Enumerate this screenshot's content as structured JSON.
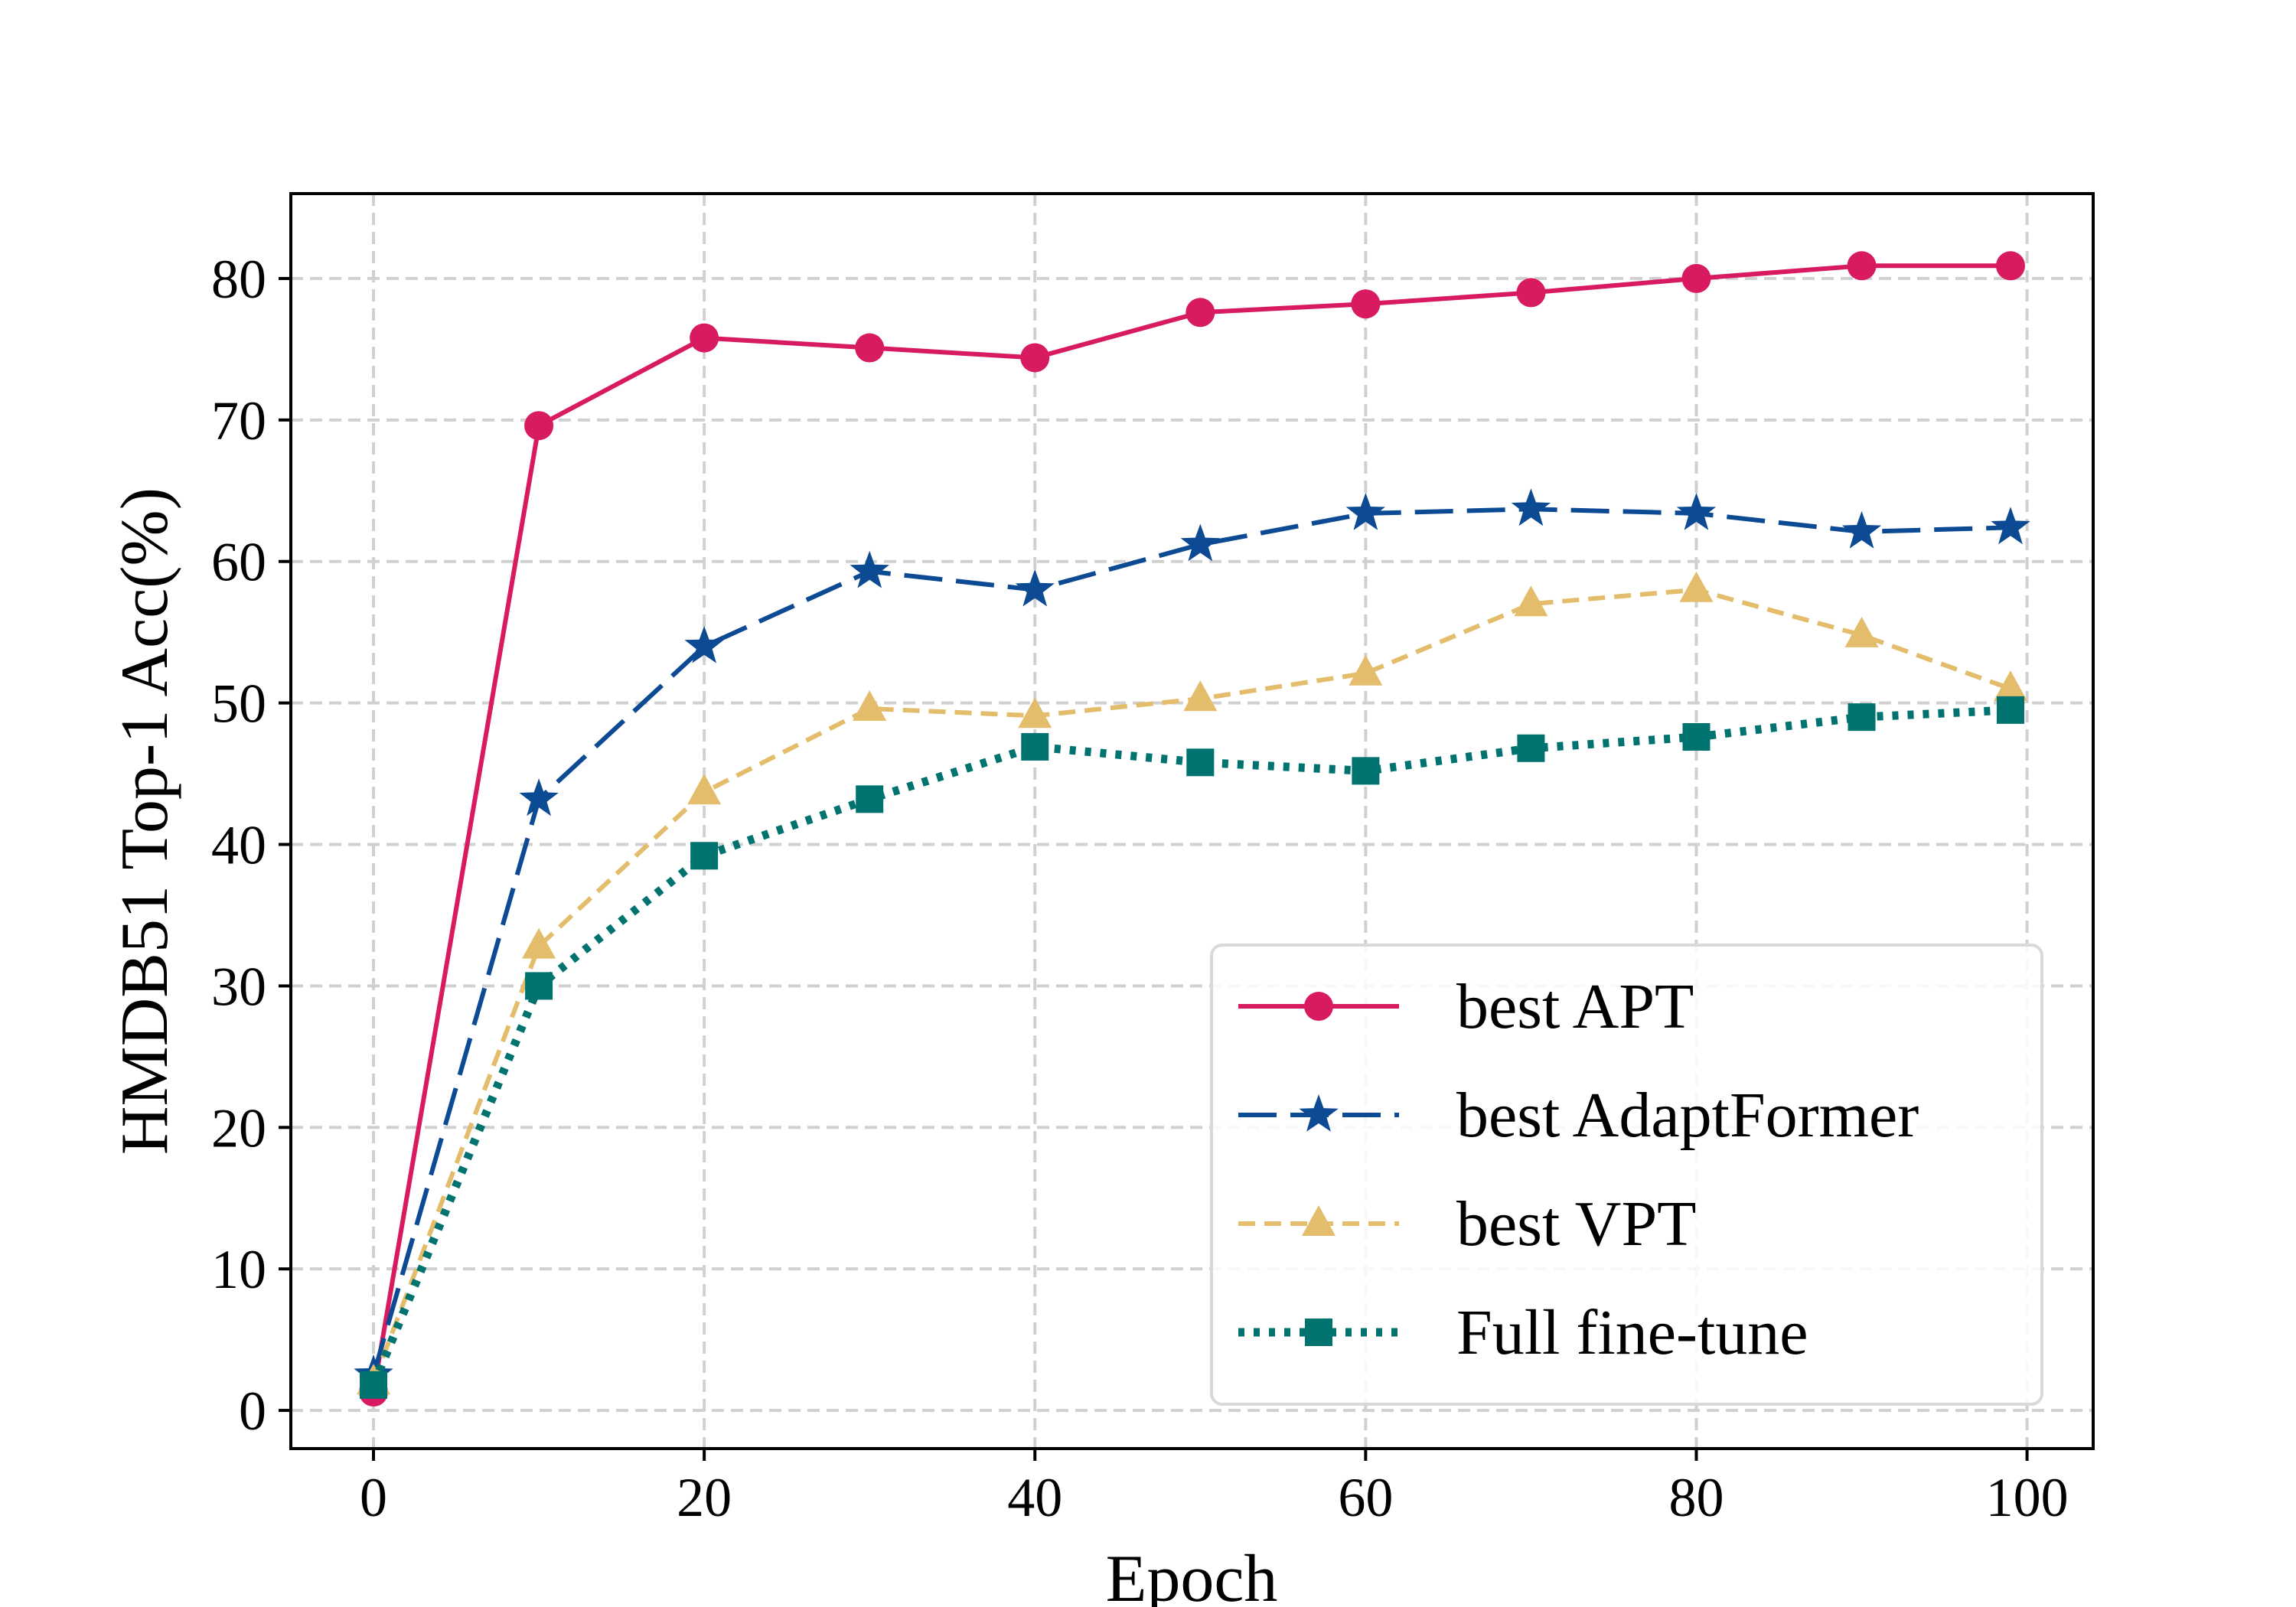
{
  "chart_data": {
    "type": "line",
    "xlabel": "Epoch",
    "ylabel": "HMDB51 Top-1 Acc(%)",
    "xlim": [
      -5,
      104
    ],
    "ylim": [
      -2.7,
      86
    ],
    "xticks": [
      0,
      20,
      40,
      60,
      80,
      100
    ],
    "yticks": [
      0,
      10,
      20,
      30,
      40,
      50,
      60,
      70,
      80
    ],
    "grid": true,
    "legend_position": "lower-right",
    "x": [
      0,
      10,
      20,
      30,
      40,
      50,
      60,
      70,
      80,
      90,
      99
    ],
    "series": [
      {
        "name": "best APT",
        "color": "#d81b60",
        "line_style": "solid",
        "marker": "circle",
        "values": [
          1.3,
          69.6,
          75.8,
          75.1,
          74.4,
          77.6,
          78.2,
          79.0,
          80.0,
          80.9,
          80.9
        ]
      },
      {
        "name": "best AdaptFormer",
        "color": "#0d4a94",
        "line_style": "dashed",
        "marker": "star",
        "values": [
          2.5,
          43.2,
          54.0,
          59.3,
          58.0,
          61.2,
          63.4,
          63.7,
          63.4,
          62.1,
          62.4
        ]
      },
      {
        "name": "best VPT",
        "color": "#e3bd6b",
        "line_style": "dashed-short",
        "marker": "triangle",
        "values": [
          2.0,
          32.8,
          43.7,
          49.6,
          49.1,
          50.3,
          52.1,
          57.0,
          58.0,
          54.8,
          51.0
        ]
      },
      {
        "name": "Full fine-tune",
        "color": "#007370",
        "line_style": "dotted",
        "marker": "square",
        "values": [
          1.8,
          30.0,
          39.2,
          43.2,
          46.9,
          45.8,
          45.2,
          46.8,
          47.6,
          49.0,
          49.5
        ]
      }
    ]
  }
}
